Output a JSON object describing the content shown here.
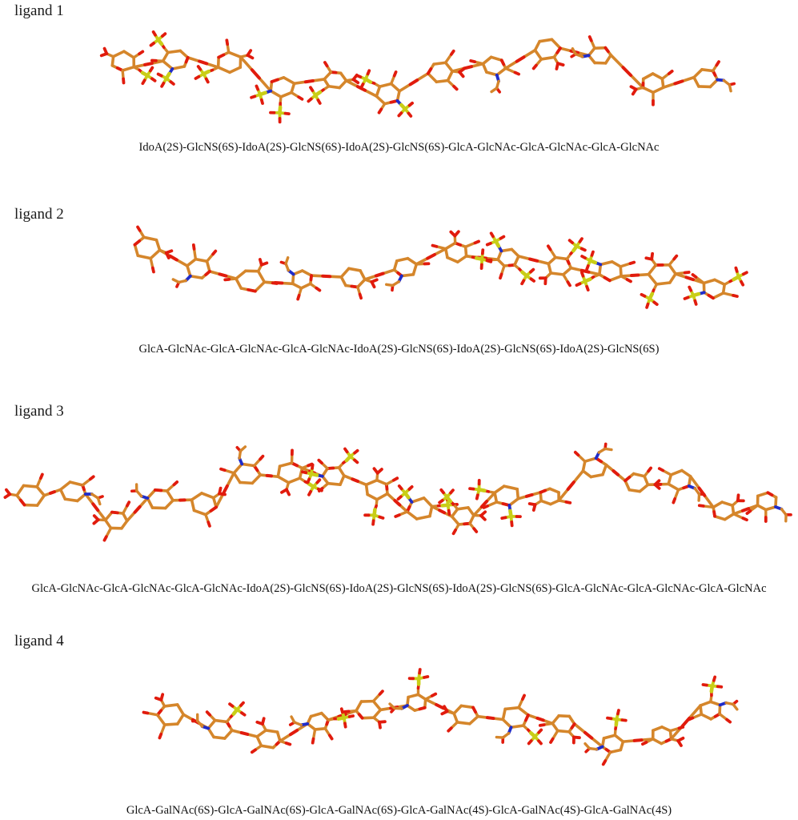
{
  "figure": {
    "colors": {
      "carbon": "#d5862b",
      "oxygen": "#e11b0d",
      "sulfur": "#c9ce17",
      "nitrogen": "#1f2ccb",
      "background": "#ffffff"
    },
    "ligands": [
      {
        "label": "ligand 1",
        "sequence": "IdoA(2S)-GlcNS(6S)-IdoA(2S)-GlcNS(6S)-IdoA(2S)-GlcNS(6S)-GlcA-GlcNAc-GlcA-GlcNAc-GlcA-GlcNAc"
      },
      {
        "label": "ligand 2",
        "sequence": "GlcA-GlcNAc-GlcA-GlcNAc-GlcA-GlcNAc-IdoA(2S)-GlcNS(6S)-IdoA(2S)-GlcNS(6S)-IdoA(2S)-GlcNS(6S)"
      },
      {
        "label": "ligand 3",
        "sequence": "GlcA-GlcNAc-GlcA-GlcNAc-GlcA-GlcNAc-IdoA(2S)-GlcNS(6S)-IdoA(2S)-GlcNS(6S)-IdoA(2S)-GlcNS(6S)-GlcA-GlcNAc-GlcA-GlcNAc-GlcA-GlcNAc"
      },
      {
        "label": "ligand 4",
        "sequence": "GlcA-GalNAc(6S)-GlcA-GalNAc(6S)-GlcA-GalNAc(6S)-GlcA-GalNAc(4S)-GlcA-GalNAc(4S)-GlcA-GalNAc(4S)"
      }
    ]
  }
}
